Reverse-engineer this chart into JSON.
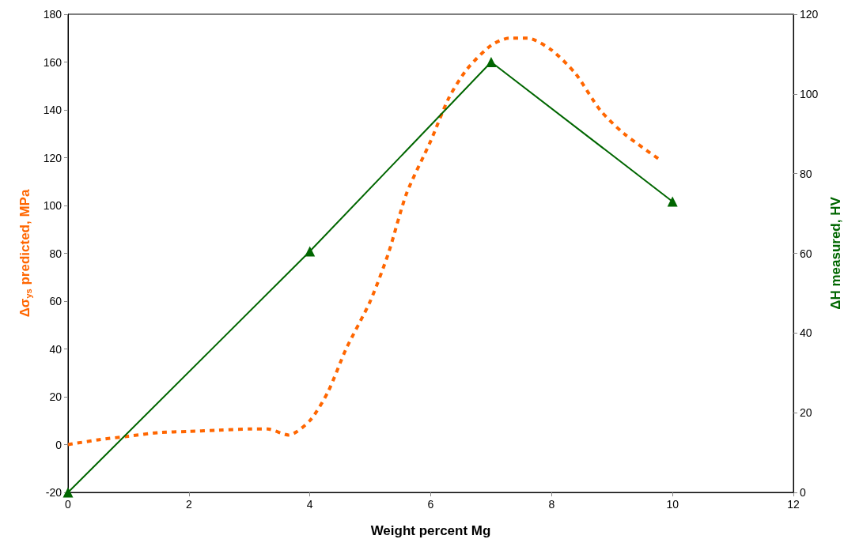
{
  "chart_data": {
    "type": "line",
    "xlabel": "Weight percent Mg",
    "ylabel": "Δσ$_{ys}$ predicted, MPa",
    "y2label": "ΔH measured, HV",
    "xlim": [
      0,
      12
    ],
    "xticks": [
      0,
      2,
      4,
      6,
      8,
      10,
      12
    ],
    "ylim": [
      -20,
      180
    ],
    "yticks": [
      -20,
      0,
      20,
      40,
      60,
      80,
      100,
      120,
      140,
      160,
      180
    ],
    "y2lim": [
      0,
      120
    ],
    "y2ticks": [
      0,
      20,
      40,
      60,
      80,
      100,
      120
    ],
    "grid": false,
    "series": [
      {
        "color": "#ff6600",
        "marker": "none",
        "line_style": "dashed",
        "x": [
          0,
          0.5,
          1,
          1.5,
          2,
          2.5,
          3,
          3.3,
          3.65,
          4,
          4.3,
          4.6,
          5,
          5.3,
          5.6,
          6,
          6.3,
          6.6,
          7,
          7.3,
          7.6,
          8,
          8.4,
          8.8,
          9.2,
          9.8
        ],
        "values": [
          0,
          2,
          3.5,
          5,
          5.5,
          6,
          6.5,
          6.5,
          4,
          10,
          22,
          40,
          60,
          80,
          105,
          127,
          145,
          157,
          167,
          170,
          170,
          165,
          155,
          140,
          130,
          119
        ]
      },
      {
        "color": "#006600",
        "marker": "triangle",
        "line_style": "solid",
        "axis": "y2",
        "x": [
          0,
          4,
          7,
          10
        ],
        "values": [
          0,
          60.5,
          108,
          73
        ]
      }
    ]
  }
}
